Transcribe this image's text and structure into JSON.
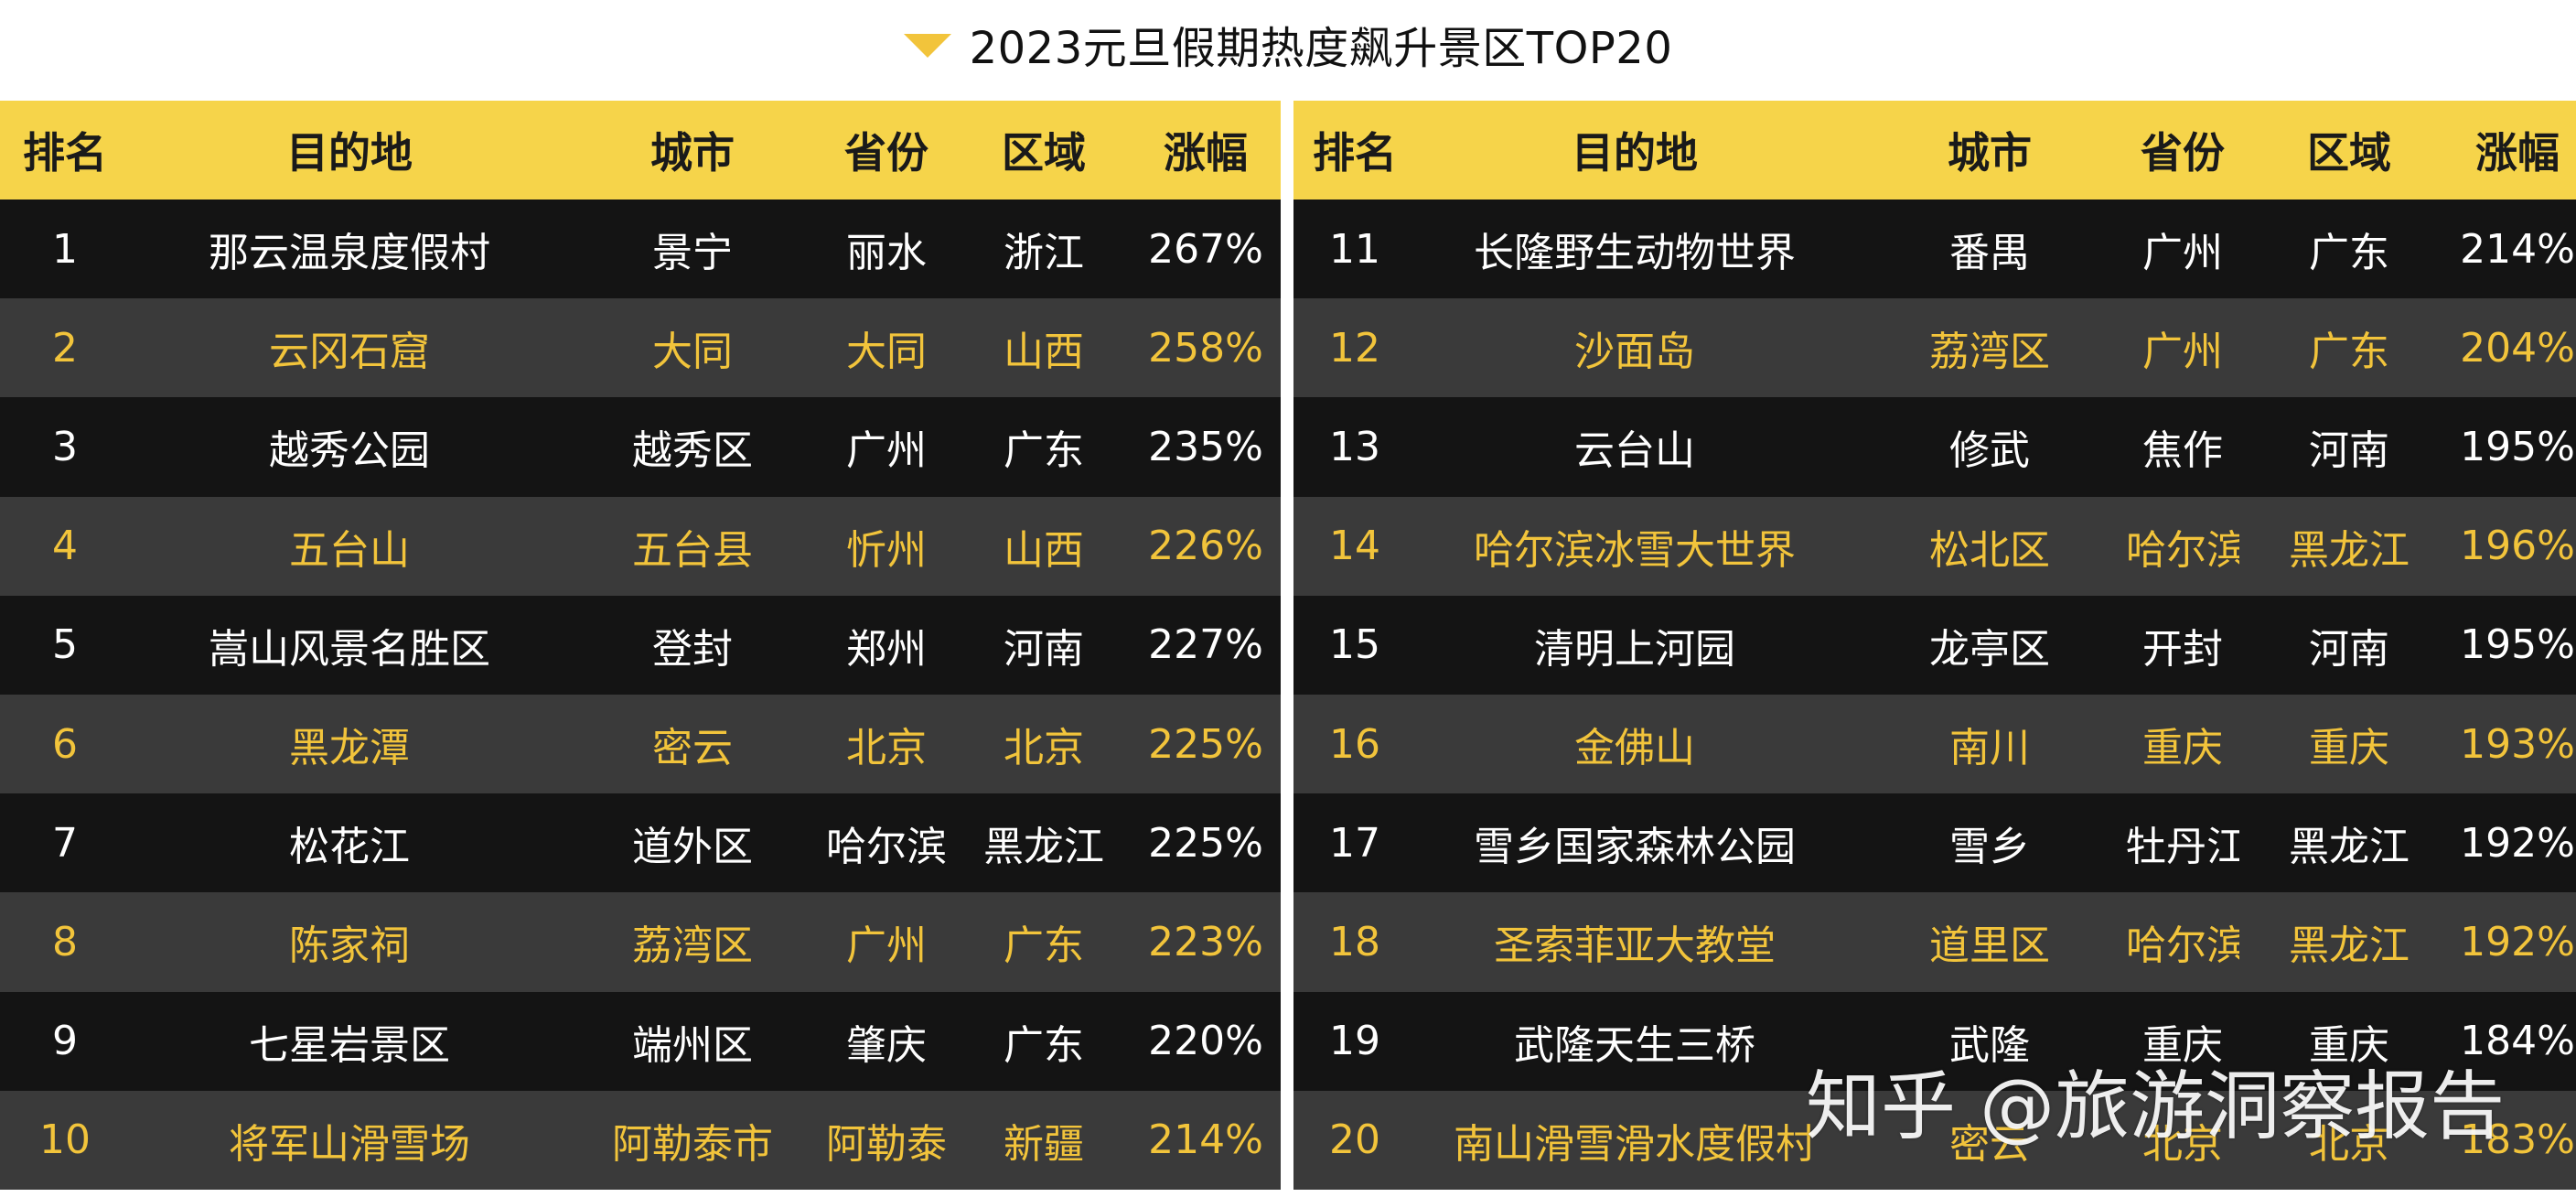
{
  "title": "2023元旦假期热度飙升景区TOP20",
  "colors": {
    "header_bg": "#f6d44a",
    "row_dark": "#141414",
    "row_mid": "#3a3a3a",
    "highlight_text": "#f2c43b",
    "arrow": "#f2c43b"
  },
  "headers": [
    "排名",
    "目的地",
    "城市",
    "省份",
    "区域",
    "涨幅"
  ],
  "left_rows": [
    {
      "rank": "1",
      "destination": "那云温泉度假村",
      "city": "景宁",
      "province": "丽水",
      "region": "浙江",
      "growth": "267%"
    },
    {
      "rank": "2",
      "destination": "云冈石窟",
      "city": "大同",
      "province": "大同",
      "region": "山西",
      "growth": "258%"
    },
    {
      "rank": "3",
      "destination": "越秀公园",
      "city": "越秀区",
      "province": "广州",
      "region": "广东",
      "growth": "235%"
    },
    {
      "rank": "4",
      "destination": "五台山",
      "city": "五台县",
      "province": "忻州",
      "region": "山西",
      "growth": "226%"
    },
    {
      "rank": "5",
      "destination": "嵩山风景名胜区",
      "city": "登封",
      "province": "郑州",
      "region": "河南",
      "growth": "227%"
    },
    {
      "rank": "6",
      "destination": "黑龙潭",
      "city": "密云",
      "province": "北京",
      "region": "北京",
      "growth": "225%"
    },
    {
      "rank": "7",
      "destination": "松花江",
      "city": "道外区",
      "province": "哈尔滨",
      "region": "黑龙江",
      "growth": "225%"
    },
    {
      "rank": "8",
      "destination": "陈家祠",
      "city": "荔湾区",
      "province": "广州",
      "region": "广东",
      "growth": "223%"
    },
    {
      "rank": "9",
      "destination": "七星岩景区",
      "city": "端州区",
      "province": "肇庆",
      "region": "广东",
      "growth": "220%"
    },
    {
      "rank": "10",
      "destination": "将军山滑雪场",
      "city": "阿勒泰市",
      "province": "阿勒泰",
      "region": "新疆",
      "growth": "214%"
    }
  ],
  "right_rows": [
    {
      "rank": "11",
      "destination": "长隆野生动物世界",
      "city": "番禺",
      "province": "广州",
      "region": "广东",
      "growth": "214%"
    },
    {
      "rank": "12",
      "destination": "沙面岛",
      "city": "荔湾区",
      "province": "广州",
      "region": "广东",
      "growth": "204%"
    },
    {
      "rank": "13",
      "destination": "云台山",
      "city": "修武",
      "province": "焦作",
      "region": "河南",
      "growth": "195%"
    },
    {
      "rank": "14",
      "destination": "哈尔滨冰雪大世界",
      "city": "松北区",
      "province": "哈尔滨",
      "region": "黑龙江",
      "growth": "196%"
    },
    {
      "rank": "15",
      "destination": "清明上河园",
      "city": "龙亭区",
      "province": "开封",
      "region": "河南",
      "growth": "195%"
    },
    {
      "rank": "16",
      "destination": "金佛山",
      "city": "南川",
      "province": "重庆",
      "region": "重庆",
      "growth": "193%"
    },
    {
      "rank": "17",
      "destination": "雪乡国家森林公园",
      "city": "雪乡",
      "province": "牡丹江",
      "region": "黑龙江",
      "growth": "192%"
    },
    {
      "rank": "18",
      "destination": "圣索菲亚大教堂",
      "city": "道里区",
      "province": "哈尔滨",
      "region": "黑龙江",
      "growth": "192%"
    },
    {
      "rank": "19",
      "destination": "武隆天生三桥",
      "city": "武隆",
      "province": "重庆",
      "region": "重庆",
      "growth": "184%"
    },
    {
      "rank": "20",
      "destination": "南山滑雪滑水度假村",
      "city": "密云",
      "province": "北京",
      "region": "北京",
      "growth": "183%"
    }
  ],
  "watermark": "知乎 @旅游洞察报告"
}
